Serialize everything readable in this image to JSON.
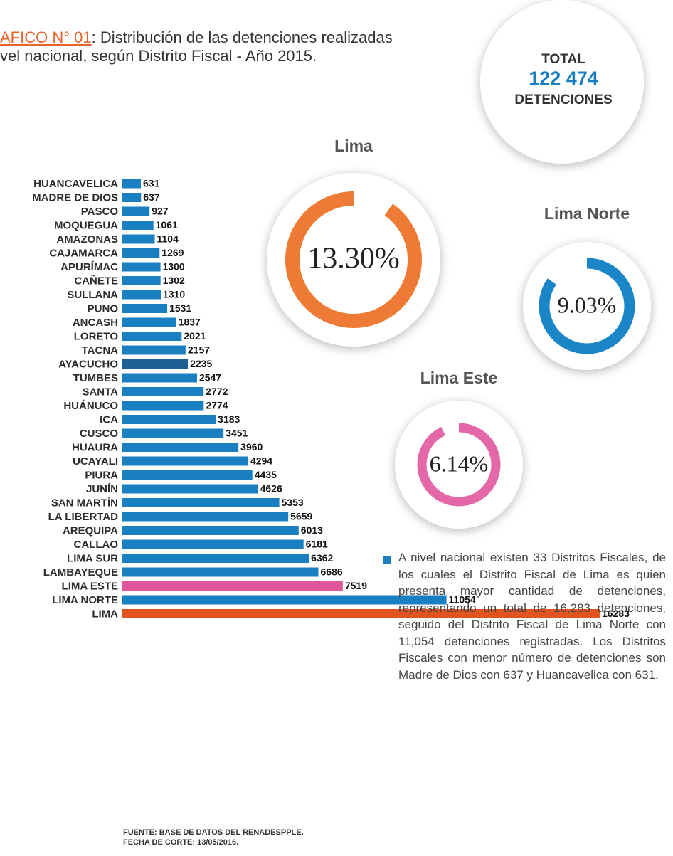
{
  "chart_data": {
    "type": "bar",
    "title_number": "AFICO N° 01",
    "title_lines": [
      ": Distribución de las detenciones realizadas",
      "vel nacional, según Distrito Fiscal - Año 2015."
    ],
    "categories": [
      "HUANCAVELICA",
      "MADRE DE DIOS",
      "PASCO",
      "MOQUEGUA",
      "AMAZONAS",
      "CAJAMARCA",
      "APURÍMAC",
      "CAÑETE",
      "SULLANA",
      "PUNO",
      "ANCASH",
      "LORETO",
      "TACNA",
      "AYACUCHO",
      "TUMBES",
      "SANTA",
      "HUÁNUCO",
      "ICA",
      "CUSCO",
      "HUAURA",
      "UCAYALI",
      "PIURA",
      "JUNÍN",
      "SAN MARTÍN",
      "LA LIBERTAD",
      "AREQUIPA",
      "CALLAO",
      "LIMA SUR",
      "LAMBAYEQUE",
      "LIMA ESTE",
      "LIMA NORTE",
      "LIMA"
    ],
    "values": [
      631,
      637,
      927,
      1061,
      1104,
      1269,
      1300,
      1302,
      1310,
      1531,
      1837,
      2021,
      2157,
      2235,
      2547,
      2772,
      2774,
      3183,
      3451,
      3960,
      4294,
      4435,
      4626,
      5353,
      5659,
      6013,
      6181,
      6362,
      6686,
      7519,
      11054,
      16283
    ],
    "colors": [
      "#1a7fc1",
      "#1a7fc1",
      "#1a7fc1",
      "#1a7fc1",
      "#1a7fc1",
      "#1a7fc1",
      "#1a7fc1",
      "#1a7fc1",
      "#1a7fc1",
      "#1a7fc1",
      "#1a7fc1",
      "#1a7fc1",
      "#1a7fc1",
      "#1b5f93",
      "#1a7fc1",
      "#1a7fc1",
      "#1a7fc1",
      "#1a7fc1",
      "#1a7fc1",
      "#1a7fc1",
      "#1a7fc1",
      "#1a7fc1",
      "#1a7fc1",
      "#1a7fc1",
      "#1a7fc1",
      "#1a7fc1",
      "#1a7fc1",
      "#1a7fc1",
      "#1a7fc1",
      "#e0569b",
      "#1a7fc1",
      "#e0541f"
    ]
  },
  "total": {
    "label": "TOTAL",
    "value": "122 474",
    "unit": "DETENCIONES"
  },
  "highlights": [
    {
      "name": "Lima",
      "value": 13.3,
      "value_label": "13.30%",
      "color": "#ee7b35"
    },
    {
      "name": "Lima Norte",
      "value": 9.03,
      "value_label": "9.03%",
      "color": "#1a86c8"
    },
    {
      "name": "Lima Este",
      "value": 6.14,
      "value_label": "6.14%",
      "color": "#e467a8"
    }
  ],
  "note": "A nivel nacional existen 33 Distritos Fiscales, de los cuales el Distrito Fiscal de Lima es quien presenta mayor cantidad de detenciones, representando un total de 16,283 detenciones, seguido del Distrito Fiscal de Lima Norte con 11,054 detenciones registradas. Los Distritos Fiscales con menor número de detenciones son Madre de Dios con 637 y Huancavelica con 631.",
  "footer": [
    "FUENTE: BASE DE DATOS DEL RENADESPPLE.",
    "FECHA DE CORTE: 13/05/2016."
  ]
}
